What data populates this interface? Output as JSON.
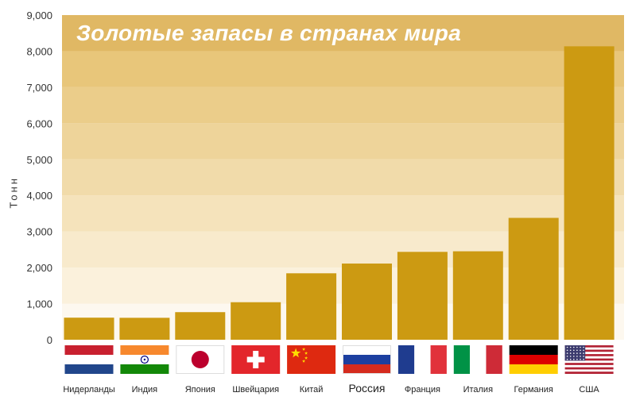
{
  "chart_data": {
    "type": "bar",
    "title": "Золотые запасы в странах мира",
    "ylabel": "Тонн",
    "xlabel": "",
    "ylim": [
      0,
      9000
    ],
    "yticks": [
      "0",
      "1,000",
      "2,000",
      "3,000",
      "4,000",
      "5,000",
      "6,000",
      "7,000",
      "8,000",
      "9,000"
    ],
    "categories": [
      "Нидерланды",
      "Индия",
      "Япония",
      "Швейцария",
      "Китай",
      "Россия",
      "Франция",
      "Италия",
      "Германия",
      "США"
    ],
    "values": [
      612,
      608,
      765,
      1040,
      1842,
      2112,
      2436,
      2452,
      3378,
      8134
    ],
    "bar_color": "#cc9a12",
    "band_colors": [
      "#fdf8ef",
      "#fbf1dc",
      "#f8eacc",
      "#f5e3bb",
      "#f1dbaa",
      "#eed49a",
      "#ebcd8a",
      "#e8c67a",
      "#e0b864"
    ],
    "flags": [
      "netherlands-flag",
      "india-flag",
      "japan-flag",
      "switzerland-flag",
      "china-flag",
      "russia-flag",
      "france-flag",
      "italy-flag",
      "germany-flag",
      "usa-flag"
    ],
    "grid": false,
    "legend": "none"
  }
}
